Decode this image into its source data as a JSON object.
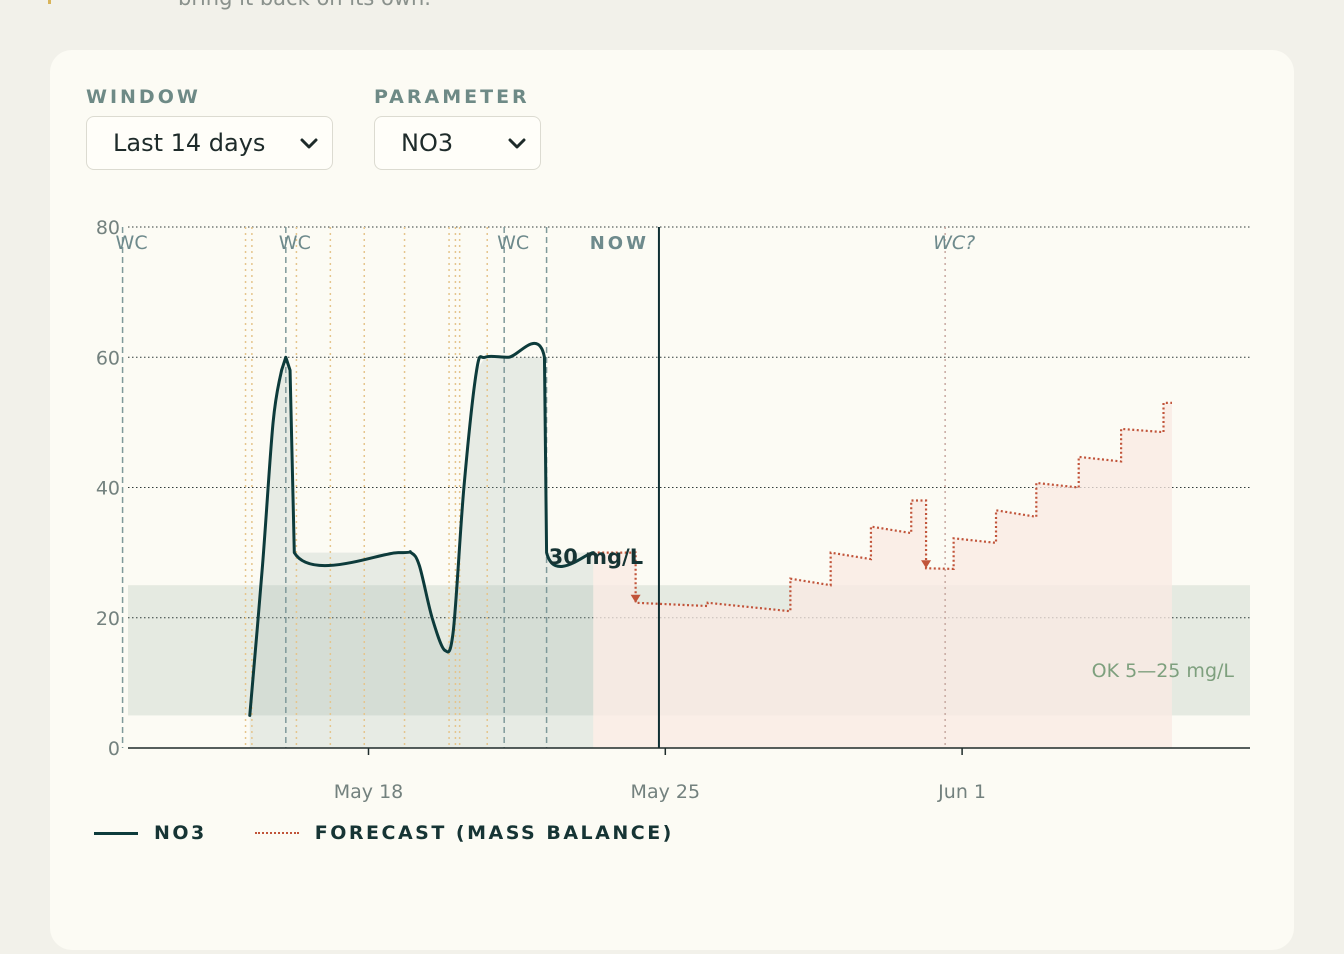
{
  "header": {
    "fragment_text": "bring it back on its own."
  },
  "controls": {
    "window": {
      "label": "WINDOW",
      "value": "Last 14 days"
    },
    "parameter": {
      "label": "PARAMETER",
      "value": "NO3"
    }
  },
  "chart_data": {
    "type": "line",
    "x_ticks": [
      "May 18",
      "May 25",
      "Jun 1"
    ],
    "y_ticks": [
      0,
      20,
      40,
      60,
      80
    ],
    "ylim": [
      0,
      80
    ],
    "grid": true,
    "ok_band": {
      "min": 5,
      "max": 25,
      "label": "OK 5—25 mg/L"
    },
    "now_label": "NOW",
    "current_value_label": "30 mg/L",
    "event_markers": [
      {
        "label": "WC",
        "day": 12.2
      },
      {
        "label": "WC",
        "day": 16.05
      },
      {
        "label": "WC",
        "day": 21.2
      },
      {
        "label": "WC?",
        "day": 31.6,
        "italic": true
      }
    ],
    "series": [
      {
        "name": "NO3",
        "style": "solid",
        "color": "#0d3b3b",
        "points": [
          [
            15.2,
            5
          ],
          [
            15.5,
            28
          ],
          [
            15.75,
            50
          ],
          [
            15.95,
            58
          ],
          [
            16.05,
            60
          ],
          [
            16.15,
            58
          ],
          [
            16.25,
            30
          ],
          [
            18.7,
            30
          ],
          [
            19.0,
            30
          ],
          [
            19.2,
            28
          ],
          [
            19.5,
            20
          ],
          [
            19.8,
            15
          ],
          [
            20.0,
            18
          ],
          [
            20.25,
            40
          ],
          [
            20.55,
            58
          ],
          [
            20.75,
            60
          ],
          [
            21.3,
            60
          ],
          [
            22.15,
            60
          ],
          [
            22.2,
            30
          ],
          [
            23.3,
            30
          ]
        ]
      },
      {
        "name": "FORECAST (MASS BALANCE)",
        "style": "dotted",
        "color": "#c1543a",
        "points": [
          [
            23.3,
            30
          ],
          [
            24.3,
            30
          ],
          [
            24.3,
            22.3
          ],
          [
            26.0,
            21.8
          ],
          [
            26.0,
            22.3
          ],
          [
            27.95,
            21
          ],
          [
            27.95,
            26
          ],
          [
            28.9,
            25
          ],
          [
            28.9,
            30
          ],
          [
            29.85,
            29
          ],
          [
            29.85,
            34
          ],
          [
            30.8,
            33
          ],
          [
            30.8,
            38
          ],
          [
            31.15,
            38
          ],
          [
            31.15,
            27.6
          ],
          [
            31.8,
            27.5
          ],
          [
            31.8,
            32.2
          ],
          [
            32.8,
            31.5
          ],
          [
            32.8,
            36.5
          ],
          [
            33.75,
            35.5
          ],
          [
            33.75,
            40.7
          ],
          [
            34.75,
            40
          ],
          [
            34.75,
            44.7
          ],
          [
            35.75,
            44
          ],
          [
            35.75,
            49
          ],
          [
            36.75,
            48.5
          ],
          [
            36.75,
            53
          ],
          [
            36.95,
            53
          ]
        ]
      }
    ],
    "dose_markers_days": [
      15.1,
      15.25,
      16.3,
      17.1,
      17.9,
      18.85,
      19.9,
      20.05,
      20.15,
      20.8
    ]
  },
  "colors": {
    "ok_band": "#e1e6dd",
    "wc_line": "#7f999a",
    "dose_line": "#e5c58d",
    "now_line": "#0f2f33",
    "forecast_fill": "#f9eae3"
  }
}
